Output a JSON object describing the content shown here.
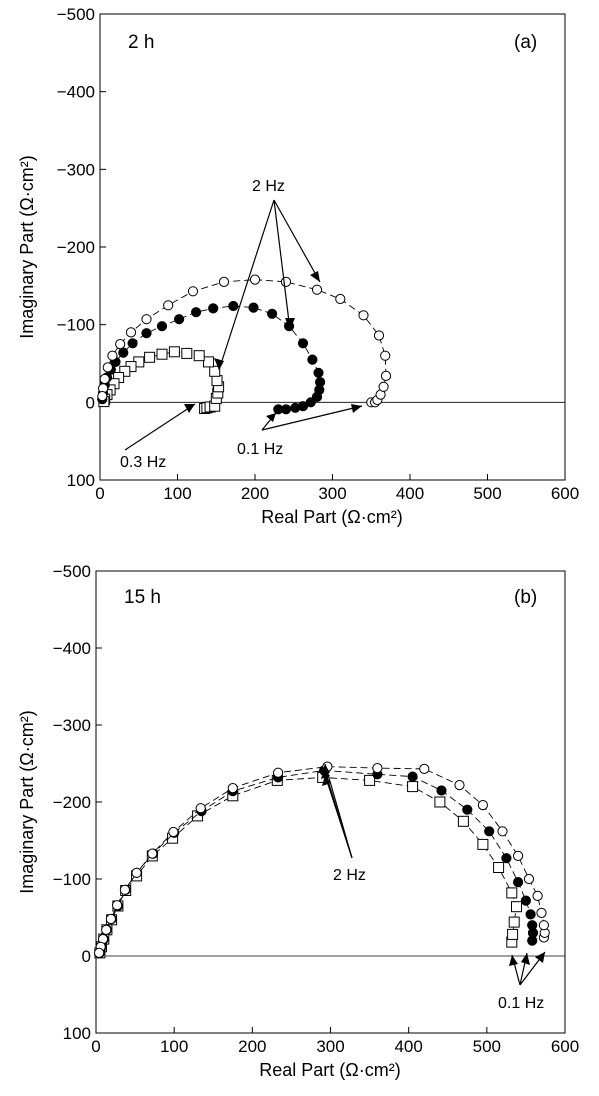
{
  "chart_data": [
    {
      "type": "scatter",
      "panel_label": "(a)",
      "time_label": "2 h",
      "xlabel": "Real Part (Ω·cm²)",
      "ylabel": "Imaginary Part (Ω·cm²)",
      "xlim": [
        0,
        600
      ],
      "ylim": [
        100,
        -500
      ],
      "xticks": [
        "0",
        "100",
        "200",
        "300",
        "400",
        "500",
        "600"
      ],
      "yticks": [
        "100",
        "0",
        "−100",
        "−200",
        "−300",
        "−400",
        "−500"
      ],
      "marker_legend": {
        "open-circle": "open circle",
        "filled-circle": "filled circle",
        "open-square": "open square"
      },
      "series": [
        {
          "marker": "open-square",
          "points": [
            [
              135,
              8
            ],
            [
              138,
              7
            ],
            [
              142,
              6
            ],
            [
              148,
              5
            ],
            [
              150,
              -5
            ],
            [
              152,
              -12
            ],
            [
              153,
              -20
            ],
            [
              151,
              -28
            ],
            [
              148,
              -40
            ],
            [
              140,
              -52
            ],
            [
              128,
              -60
            ],
            [
              112,
              -63
            ],
            [
              96,
              -65
            ],
            [
              80,
              -62
            ],
            [
              64,
              -58
            ],
            [
              50,
              -52
            ],
            [
              40,
              -46
            ],
            [
              32,
              -40
            ],
            [
              24,
              -32
            ],
            [
              18,
              -24
            ],
            [
              13,
              -16
            ],
            [
              9,
              -10
            ],
            [
              6,
              -4
            ],
            [
              5,
              -1
            ]
          ]
        },
        {
          "marker": "filled-circle",
          "points": [
            [
              230,
              9
            ],
            [
              240,
              9
            ],
            [
              252,
              7
            ],
            [
              262,
              5
            ],
            [
              272,
              0
            ],
            [
              280,
              -7
            ],
            [
              283,
              -16
            ],
            [
              284,
              -26
            ],
            [
              282,
              -38
            ],
            [
              274,
              -55
            ],
            [
              262,
              -76
            ],
            [
              244,
              -98
            ],
            [
              222,
              -114
            ],
            [
              198,
              -122
            ],
            [
              172,
              -124
            ],
            [
              146,
              -121
            ],
            [
              124,
              -116
            ],
            [
              102,
              -107
            ],
            [
              80,
              -98
            ],
            [
              60,
              -89
            ],
            [
              42,
              -76
            ],
            [
              30,
              -64
            ],
            [
              20,
              -52
            ],
            [
              14,
              -42
            ],
            [
              9,
              -32
            ],
            [
              6,
              -22
            ],
            [
              4,
              -12
            ],
            [
              3,
              -4
            ]
          ]
        },
        {
          "marker": "open-circle",
          "points": [
            [
              350,
              0
            ],
            [
              355,
              0
            ],
            [
              358,
              -3
            ],
            [
              362,
              -10
            ],
            [
              366,
              -20
            ],
            [
              369,
              -34
            ],
            [
              368,
              -60
            ],
            [
              360,
              -86
            ],
            [
              340,
              -112
            ],
            [
              310,
              -133
            ],
            [
              280,
              -145
            ],
            [
              240,
              -155
            ],
            [
              200,
              -158
            ],
            [
              160,
              -155
            ],
            [
              120,
              -143
            ],
            [
              88,
              -125
            ],
            [
              60,
              -107
            ],
            [
              40,
              -90
            ],
            [
              26,
              -75
            ],
            [
              16,
              -60
            ],
            [
              10,
              -45
            ],
            [
              6,
              -30
            ],
            [
              4,
              -18
            ],
            [
              3,
              -8
            ]
          ]
        }
      ],
      "annotations": [
        {
          "text": "2 Hz",
          "x": 240,
          "y": -306
        },
        {
          "text": "0.3 Hz",
          "x": 60,
          "y": 72
        },
        {
          "text": "0.1 Hz",
          "x": 205,
          "y": 65
        }
      ]
    },
    {
      "type": "scatter",
      "panel_label": "(b)",
      "time_label": "15 h",
      "xlabel": "Real Part (Ω·cm²)",
      "ylabel": "Imaginary Part (Ω·cm²)",
      "xlim": [
        0,
        600
      ],
      "ylim": [
        100,
        -500
      ],
      "xticks": [
        "0",
        "100",
        "200",
        "300",
        "400",
        "500",
        "600"
      ],
      "yticks": [
        "100",
        "0",
        "−100",
        "−200",
        "−300",
        "−400",
        "−500"
      ],
      "series": [
        {
          "marker": "open-square",
          "points": [
            [
              532,
              -18
            ],
            [
              533,
              -28
            ],
            [
              535,
              -44
            ],
            [
              538,
              -64
            ],
            [
              532,
              -82
            ],
            [
              515,
              -115
            ],
            [
              495,
              -145
            ],
            [
              470,
              -175
            ],
            [
              440,
              -200
            ],
            [
              405,
              -220
            ],
            [
              350,
              -228
            ],
            [
              290,
              -232
            ],
            [
              232,
              -228
            ],
            [
              175,
              -208
            ],
            [
              130,
              -182
            ],
            [
              98,
              -153
            ],
            [
              72,
              -130
            ],
            [
              52,
              -104
            ],
            [
              38,
              -85
            ],
            [
              28,
              -65
            ],
            [
              20,
              -47
            ],
            [
              14,
              -34
            ],
            [
              10,
              -22
            ],
            [
              7,
              -12
            ],
            [
              5,
              -4
            ]
          ]
        },
        {
          "marker": "filled-circle",
          "points": [
            [
              558,
              -20
            ],
            [
              559,
              -30
            ],
            [
              558,
              -40
            ],
            [
              556,
              -54
            ],
            [
              550,
              -72
            ],
            [
              540,
              -96
            ],
            [
              525,
              -127
            ],
            [
              503,
              -162
            ],
            [
              475,
              -190
            ],
            [
              442,
              -215
            ],
            [
              405,
              -233
            ],
            [
              360,
              -236
            ],
            [
              292,
              -241
            ],
            [
              233,
              -232
            ],
            [
              175,
              -214
            ],
            [
              135,
              -188
            ],
            [
              100,
              -160
            ],
            [
              73,
              -133
            ],
            [
              52,
              -108
            ],
            [
              38,
              -86
            ],
            [
              28,
              -65
            ],
            [
              20,
              -48
            ],
            [
              14,
              -34
            ],
            [
              10,
              -22
            ],
            [
              7,
              -12
            ],
            [
              5,
              -4
            ]
          ]
        },
        {
          "marker": "open-circle",
          "points": [
            [
              573,
              -24
            ],
            [
              574,
              -30
            ],
            [
              573,
              -40
            ],
            [
              570,
              -56
            ],
            [
              565,
              -78
            ],
            [
              554,
              -100
            ],
            [
              540,
              -130
            ],
            [
              520,
              -162
            ],
            [
              495,
              -196
            ],
            [
              465,
              -222
            ],
            [
              420,
              -243
            ],
            [
              360,
              -244
            ],
            [
              296,
              -246
            ],
            [
              233,
              -238
            ],
            [
              175,
              -218
            ],
            [
              134,
              -192
            ],
            [
              99,
              -161
            ],
            [
              72,
              -133
            ],
            [
              52,
              -108
            ],
            [
              37,
              -86
            ],
            [
              27,
              -66
            ],
            [
              19,
              -48
            ],
            [
              13,
              -34
            ],
            [
              9,
              -22
            ],
            [
              6,
              -12
            ],
            [
              4,
              -4
            ]
          ]
        }
      ],
      "annotations": [
        {
          "text": "2 Hz",
          "x": 300,
          "y": -106
        },
        {
          "text": "0.1 Hz",
          "x": 540,
          "y": 58
        }
      ]
    }
  ]
}
